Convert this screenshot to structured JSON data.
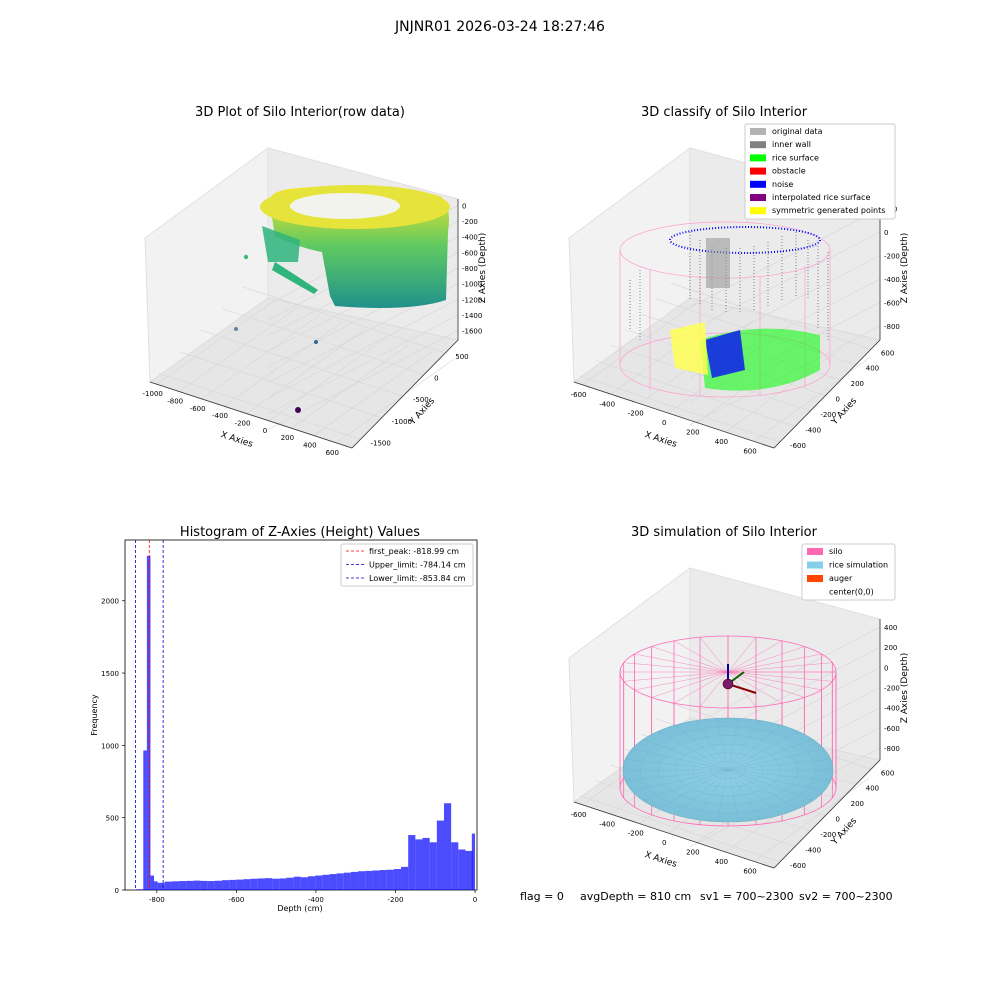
{
  "suptitle": "JNJNR01 2026-03-24 18:27:46",
  "footer": {
    "flag": "flag = 0",
    "avg": "avgDepth = 810 cm",
    "sv1": "sv1 = 700~2300",
    "sv2": "sv2 = 700~2300"
  },
  "chart_data": [
    {
      "type": "scatter",
      "title": "3D Plot of Silo Interior(row data)",
      "xlabel": "X Axies",
      "ylabel": "Y Axies",
      "zlabel": "Z Axies (Depth)",
      "x_ticks": [
        "-1000",
        "-800",
        "-600",
        "-400",
        "-200",
        "0",
        "200",
        "400",
        "600"
      ],
      "y_ticks": [
        "-1500",
        "-1000",
        "-500",
        "0",
        "500"
      ],
      "z_ticks": [
        "0",
        "-200",
        "-400",
        "-600",
        "-800",
        "-1000",
        "-1200",
        "-1400",
        "-1600"
      ],
      "note": "3D point cloud of silo interior, viridis colormap by depth"
    },
    {
      "type": "scatter",
      "title": "3D classify of Silo Interior",
      "xlabel": "X Axies",
      "ylabel": "Y Axies",
      "zlabel": "Z Axies (Depth)",
      "x_ticks": [
        "-600",
        "-400",
        "-200",
        "0",
        "200",
        "400",
        "600"
      ],
      "y_ticks": [
        "-600",
        "-400",
        "-200",
        "0",
        "200",
        "400",
        "600"
      ],
      "z_ticks": [
        "200",
        "0",
        "-200",
        "-400",
        "-600",
        "-800"
      ],
      "legend": [
        {
          "label": "original data",
          "color": "#b3b3b3"
        },
        {
          "label": "inner wall",
          "color": "#808080"
        },
        {
          "label": "rice surface",
          "color": "#00ff00"
        },
        {
          "label": "obstacle",
          "color": "#ff0000"
        },
        {
          "label": "noise",
          "color": "#0000ff"
        },
        {
          "label": "interpolated rice surface",
          "color": "#800080"
        },
        {
          "label": "symmetric generated points",
          "color": "#ffff00"
        }
      ],
      "legend_placement": "top-right"
    },
    {
      "type": "bar",
      "title": "Histogram of Z-Axies (Height) Values",
      "xlabel": "Depth (cm)",
      "ylabel": "Frequency",
      "xlim": [
        -880,
        5
      ],
      "ylim": [
        0,
        2420
      ],
      "x_ticks": [
        -800,
        -600,
        -400,
        -200,
        0
      ],
      "y_ticks": [
        0,
        500,
        1000,
        1500,
        2000
      ],
      "bin_width": 18,
      "bin_starts": [
        -852,
        -834,
        -825,
        -816,
        -807,
        -798,
        -780,
        -762,
        -744,
        -726,
        -708,
        -690,
        -672,
        -654,
        -636,
        -618,
        -600,
        -582,
        -564,
        -546,
        -528,
        -510,
        -492,
        -474,
        -456,
        -438,
        -420,
        -402,
        -384,
        -366,
        -348,
        -330,
        -312,
        -294,
        -276,
        -258,
        -240,
        -222,
        -204,
        -186,
        -168,
        -150,
        -132,
        -114,
        -96,
        -78,
        -60,
        -42,
        -24
      ],
      "bin_widths": [
        18,
        9,
        9,
        9,
        9,
        18,
        18,
        18,
        18,
        18,
        18,
        18,
        18,
        18,
        18,
        18,
        18,
        18,
        18,
        18,
        18,
        18,
        18,
        18,
        18,
        18,
        18,
        18,
        18,
        18,
        18,
        18,
        18,
        18,
        18,
        18,
        18,
        18,
        18,
        18,
        18,
        18,
        18,
        18,
        18,
        18,
        18,
        18,
        18
      ],
      "values": [
        5,
        965,
        2310,
        100,
        60,
        50,
        58,
        60,
        62,
        63,
        65,
        63,
        62,
        64,
        68,
        70,
        72,
        75,
        78,
        80,
        82,
        78,
        80,
        85,
        92,
        88,
        95,
        100,
        105,
        110,
        115,
        120,
        125,
        130,
        132,
        135,
        138,
        140,
        145,
        160,
        380,
        350,
        360,
        330,
        480,
        600,
        330,
        280,
        270
      ],
      "last_bar": {
        "x0": -8,
        "x1": 0,
        "value": 390
      },
      "bar_color": "#0000ff",
      "vlines": [
        {
          "label": "first_peak: -818.99 cm",
          "x": -818.99,
          "color": "#ff0000"
        },
        {
          "label": "Upper_limit: -784.14 cm",
          "x": -784.14,
          "color": "#0000cc"
        },
        {
          "label": "Lower_limit: -853.84 cm",
          "x": -853.84,
          "color": "#0000cc"
        }
      ],
      "legend_placement": "top-right"
    },
    {
      "type": "scatter",
      "title": "3D simulation of Silo Interior",
      "xlabel": "X Axies",
      "ylabel": "Y Axies",
      "zlabel": "Z Axies (Depth)",
      "x_ticks": [
        "-600",
        "-400",
        "-200",
        "0",
        "200",
        "400",
        "600"
      ],
      "y_ticks": [
        "-600",
        "-400",
        "-200",
        "0",
        "200",
        "400",
        "600"
      ],
      "z_ticks": [
        "400",
        "200",
        "0",
        "-200",
        "-400",
        "-600",
        "-800"
      ],
      "legend": [
        {
          "label": "silo",
          "color": "#ff69b4"
        },
        {
          "label": "rice simulation",
          "color": "#87ceeb"
        },
        {
          "label": "auger",
          "color": "#ff4500"
        },
        {
          "label": "center(0,0)",
          "color": "#ffffff"
        }
      ],
      "legend_placement": "top-right"
    }
  ]
}
